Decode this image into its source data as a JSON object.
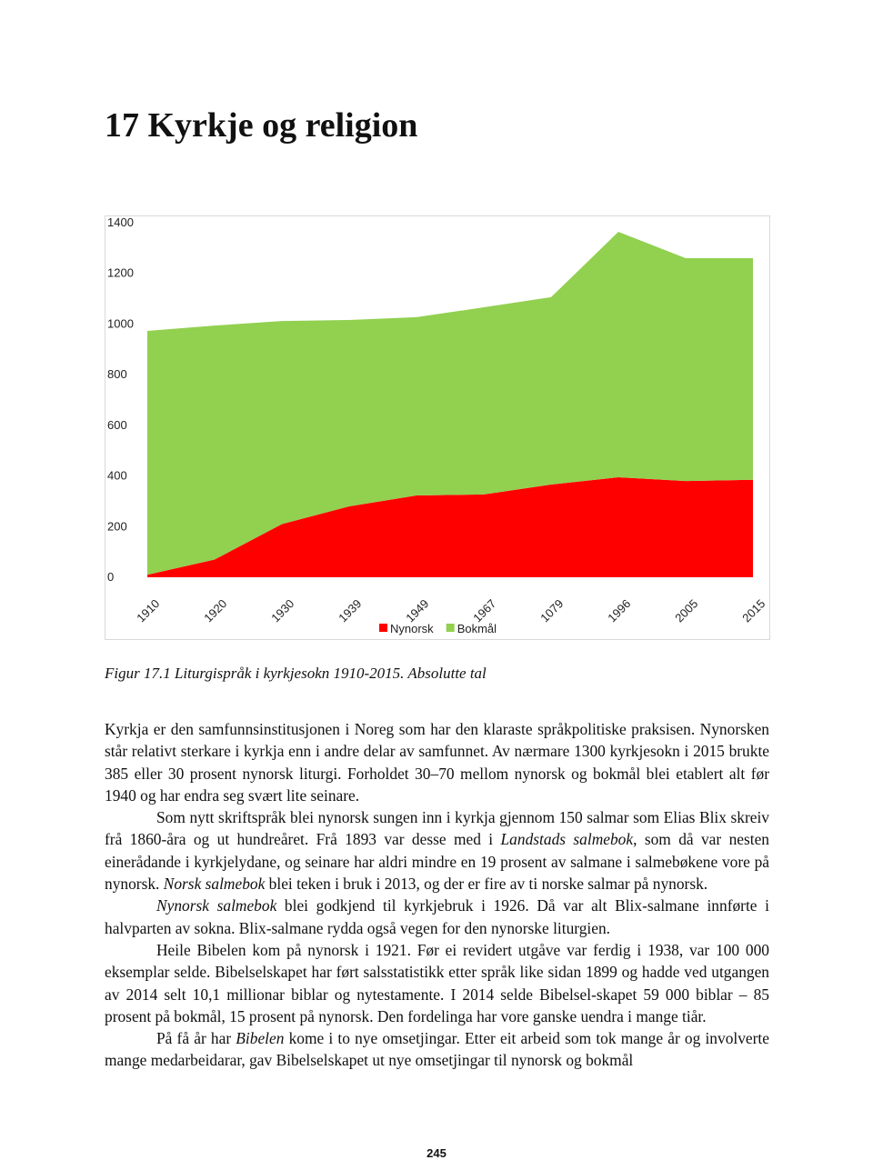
{
  "header": {
    "title": "17  Kyrkje og religion"
  },
  "chart_data": {
    "type": "stacked-area",
    "categories": [
      "1910",
      "1920",
      "1930",
      "1939",
      "1949",
      "1967",
      "1079",
      "1996",
      "2005",
      "2015"
    ],
    "series": [
      {
        "name": "Nynorsk",
        "color": "#ff0000",
        "values": [
          10,
          70,
          210,
          280,
          323,
          327,
          366,
          395,
          380,
          385
        ]
      },
      {
        "name": "Bokmål",
        "color": "#92d050",
        "values": [
          963,
          924,
          802,
          736,
          704,
          739,
          740,
          969,
          880,
          875
        ]
      }
    ],
    "ylim": [
      0,
      1400
    ],
    "yticks": [
      0,
      200,
      400,
      600,
      800,
      1000,
      1200,
      1400
    ],
    "grid": false,
    "legend": "bottom"
  },
  "caption": "Figur 17.1 Liturgispråk i kyrkjesokn 1910-2015. Absolutte tal",
  "paragraphs": [
    [
      {
        "text": "Kyrkja er den samfunnsinstitusjonen i Noreg som har den klaraste språkpolitiske praksisen. Nynorsken står relativt sterkare i kyrkja enn i andre delar av samfunnet. Av nærmare 1300 kyrkjesokn i 2015 brukte 385 eller 30 prosent nynorsk liturgi. Forholdet 30–70 mellom nynorsk og bokmål blei etablert alt før 1940 og har endra seg svært lite seinare.",
        "italic": false
      }
    ],
    [
      {
        "text": "Som nytt skriftspråk blei nynorsk sungen inn i kyrkja gjennom 150 salmar som Elias Blix skreiv frå 1860-åra og ut hundreåret. Frå 1893 var desse med i ",
        "italic": false
      },
      {
        "text": "Landstads salmebok",
        "italic": true
      },
      {
        "text": ", som då var nesten einerådande i kyrkjelydane, og seinare har aldri mindre en 19 prosent av salmane i salmebøkene vore på nynorsk. ",
        "italic": false
      },
      {
        "text": "Norsk salmebok",
        "italic": true
      },
      {
        "text": " blei teken i bruk i 2013, og der er fire av ti norske salmar på nynorsk.",
        "italic": false
      }
    ],
    [
      {
        "text": "Nynorsk salmebok",
        "italic": true
      },
      {
        "text": " blei godkjend til kyrkjebruk i 1926. Då var alt Blix-salmane innførte i halvparten av sokna. Blix-salmane rydda også vegen for den nynorske liturgien.",
        "italic": false
      }
    ],
    [
      {
        "text": "Heile Bibelen kom på nynorsk i 1921. Før ei revidert utgåve var ferdig i 1938, var 100 000 eksemplar selde. Bibelselskapet har ført salsstatistikk etter språk like sidan 1899 og hadde ved utgangen av 2014 selt 10,1 millionar biblar og nytestamente. I 2014 selde Bibelsel-skapet 59 000 biblar – 85 prosent på bokmål, 15 prosent på nynorsk. Den fordelinga har vore ganske uendra i mange tiår.",
        "italic": false
      }
    ],
    [
      {
        "text": "På få år har ",
        "italic": false
      },
      {
        "text": "Bibelen",
        "italic": true
      },
      {
        "text": " kome i to nye omsetjingar. Etter eit arbeid som tok mange år og involverte mange medarbeidarar, gav Bibelselskapet ut nye omsetjingar til nynorsk og bokmål",
        "italic": false
      }
    ]
  ],
  "page_number": "245"
}
